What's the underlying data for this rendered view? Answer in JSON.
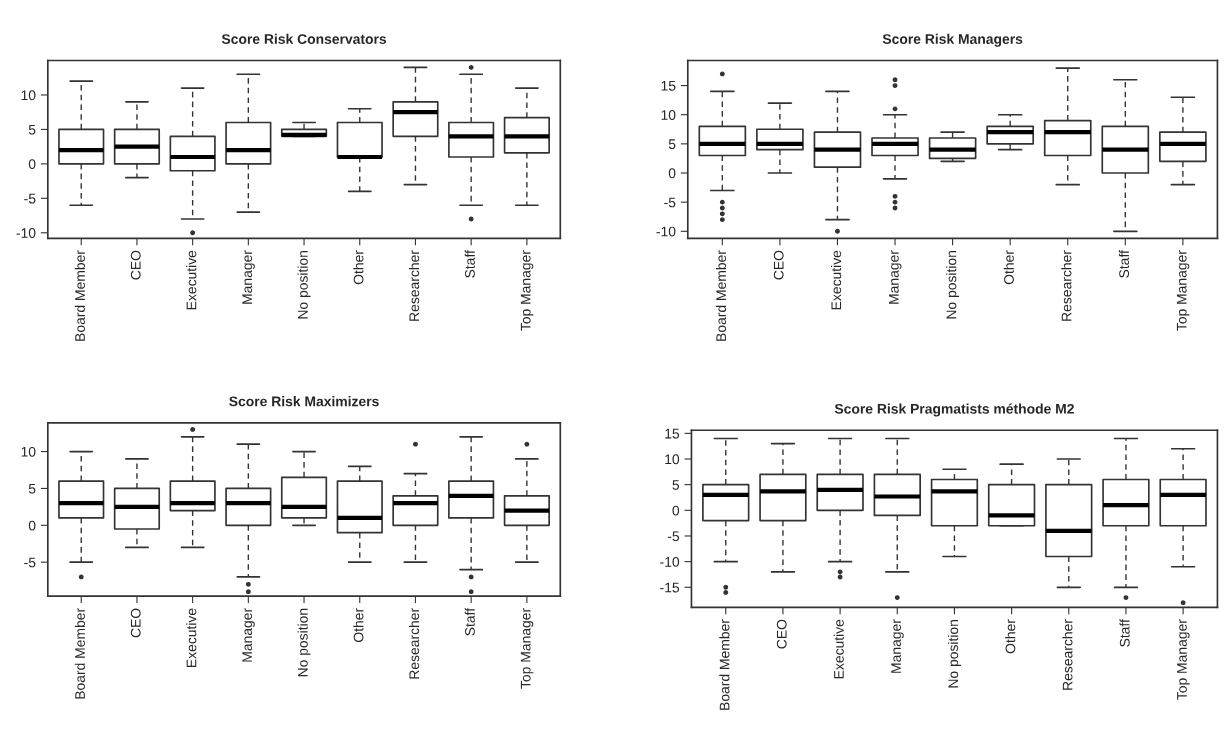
{
  "chart_data": [
    {
      "type": "box",
      "title": "Score Risk Conservators",
      "categories": [
        "Board Member",
        "CEO",
        "Executive",
        "Manager",
        "No position",
        "Other",
        "Researcher",
        "Staff",
        "Top Manager"
      ],
      "ylim": [
        -10.8,
        15
      ],
      "yticks": [
        -10,
        -5,
        0,
        5,
        10
      ],
      "grid": false,
      "boxes": [
        {
          "low": -6,
          "q1": 0,
          "median": 2,
          "q3": 5,
          "high": 12
        },
        {
          "low": -2,
          "q1": 0,
          "median": 2.5,
          "q3": 5,
          "high": 9
        },
        {
          "low": -8,
          "q1": -1,
          "median": 1,
          "q3": 4,
          "high": 11,
          "outliers": [
            -10
          ]
        },
        {
          "low": -7,
          "q1": 0,
          "median": 2,
          "q3": 6,
          "high": 13
        },
        {
          "low": 4,
          "q1": 4,
          "median": 4.2,
          "q3": 5,
          "high": 6
        },
        {
          "low": -4,
          "q1": 1,
          "median": 1,
          "q3": 6,
          "high": 8
        },
        {
          "low": -3,
          "q1": 4,
          "median": 7.5,
          "q3": 9,
          "high": 14
        },
        {
          "low": -6,
          "q1": 1,
          "median": 4,
          "q3": 6,
          "high": 13,
          "outliers": [
            14,
            -8
          ]
        },
        {
          "low": -6,
          "q1": 1.6,
          "median": 4,
          "q3": 6.7,
          "high": 11
        }
      ]
    },
    {
      "type": "box",
      "title": "Score Risk Managers",
      "categories": [
        "Board Member",
        "CEO",
        "Executive",
        "Manager",
        "No position",
        "Other",
        "Researcher",
        "Staff",
        "Top Manager"
      ],
      "ylim": [
        -11.2,
        19.3
      ],
      "yticks": [
        -10,
        -5,
        0,
        5,
        10,
        15
      ],
      "grid": false,
      "boxes": [
        {
          "low": -3,
          "q1": 3,
          "median": 5,
          "q3": 8,
          "high": 14,
          "outliers": [
            17,
            -5,
            -6,
            -7,
            -8
          ]
        },
        {
          "low": 0,
          "q1": 4,
          "median": 5,
          "q3": 7.5,
          "high": 12
        },
        {
          "low": -8,
          "q1": 1,
          "median": 4,
          "q3": 7,
          "high": 14,
          "outliers": [
            -10
          ]
        },
        {
          "low": -1,
          "q1": 3,
          "median": 5,
          "q3": 6,
          "high": 10,
          "outliers": [
            16,
            15,
            11,
            -4,
            -5,
            -6
          ]
        },
        {
          "low": 2,
          "q1": 2.5,
          "median": 4,
          "q3": 6,
          "high": 7
        },
        {
          "low": 4,
          "q1": 5,
          "median": 7,
          "q3": 8,
          "high": 10
        },
        {
          "low": -2,
          "q1": 3,
          "median": 7,
          "q3": 9,
          "high": 18
        },
        {
          "low": -10,
          "q1": 0,
          "median": 4,
          "q3": 8,
          "high": 16
        },
        {
          "low": -2,
          "q1": 2,
          "median": 5,
          "q3": 7,
          "high": 13
        }
      ]
    },
    {
      "type": "box",
      "title": "Score Risk Maximizers",
      "categories": [
        "Board Member",
        "CEO",
        "Executive",
        "Manager",
        "No position",
        "Other",
        "Researcher",
        "Staff",
        "Top Manager"
      ],
      "ylim": [
        -9.6,
        13.9
      ],
      "yticks": [
        -5,
        0,
        5,
        10
      ],
      "grid": false,
      "boxes": [
        {
          "low": -5,
          "q1": 1,
          "median": 3,
          "q3": 6,
          "high": 10,
          "outliers": [
            -7
          ]
        },
        {
          "low": -3,
          "q1": -0.5,
          "median": 2.5,
          "q3": 5,
          "high": 9
        },
        {
          "low": -3,
          "q1": 2,
          "median": 3,
          "q3": 6,
          "high": 12,
          "outliers": [
            13
          ]
        },
        {
          "low": -7,
          "q1": 0,
          "median": 3,
          "q3": 5,
          "high": 11,
          "outliers": [
            -8,
            -9
          ]
        },
        {
          "low": 0,
          "q1": 1,
          "median": 2.5,
          "q3": 6.5,
          "high": 10
        },
        {
          "low": -5,
          "q1": -1,
          "median": 1,
          "q3": 6,
          "high": 8
        },
        {
          "low": -5,
          "q1": 0,
          "median": 3,
          "q3": 4,
          "high": 7,
          "outliers": [
            11
          ]
        },
        {
          "low": -6,
          "q1": 1,
          "median": 4,
          "q3": 6,
          "high": 12,
          "outliers": [
            -7,
            -9
          ]
        },
        {
          "low": -5,
          "q1": 0,
          "median": 2,
          "q3": 4,
          "high": 9,
          "outliers": [
            11
          ]
        }
      ]
    },
    {
      "type": "box",
      "title": "Score Risk Pragmatists méthode M2",
      "categories": [
        "Board Member",
        "CEO",
        "Executive",
        "Manager",
        "No position",
        "Other",
        "Researcher",
        "Staff",
        "Top Manager"
      ],
      "ylim": [
        -18.9,
        15.6
      ],
      "yticks": [
        -15,
        -10,
        -5,
        0,
        5,
        10,
        15
      ],
      "grid": false,
      "boxes": [
        {
          "low": -10,
          "q1": -2,
          "median": 3,
          "q3": 5,
          "high": 14,
          "outliers": [
            -15,
            -16
          ]
        },
        {
          "low": -12,
          "q1": -2,
          "median": 3.7,
          "q3": 7,
          "high": 13
        },
        {
          "low": -10,
          "q1": 0,
          "median": 4,
          "q3": 7,
          "high": 14,
          "outliers": [
            -12,
            -13
          ]
        },
        {
          "low": -12,
          "q1": -1,
          "median": 2.7,
          "q3": 7,
          "high": 14,
          "outliers": [
            -17
          ]
        },
        {
          "low": -9,
          "q1": -3,
          "median": 3.7,
          "q3": 6,
          "high": 8
        },
        {
          "low": -3,
          "q1": -3,
          "median": -1,
          "q3": 5,
          "high": 9
        },
        {
          "low": -15,
          "q1": -9,
          "median": -4,
          "q3": 5,
          "high": 10
        },
        {
          "low": -15,
          "q1": -3,
          "median": 1,
          "q3": 6,
          "high": 14,
          "outliers": [
            -17
          ]
        },
        {
          "low": -11,
          "q1": -3,
          "median": 3,
          "q3": 6,
          "high": 12,
          "outliers": [
            -18
          ]
        }
      ]
    }
  ]
}
